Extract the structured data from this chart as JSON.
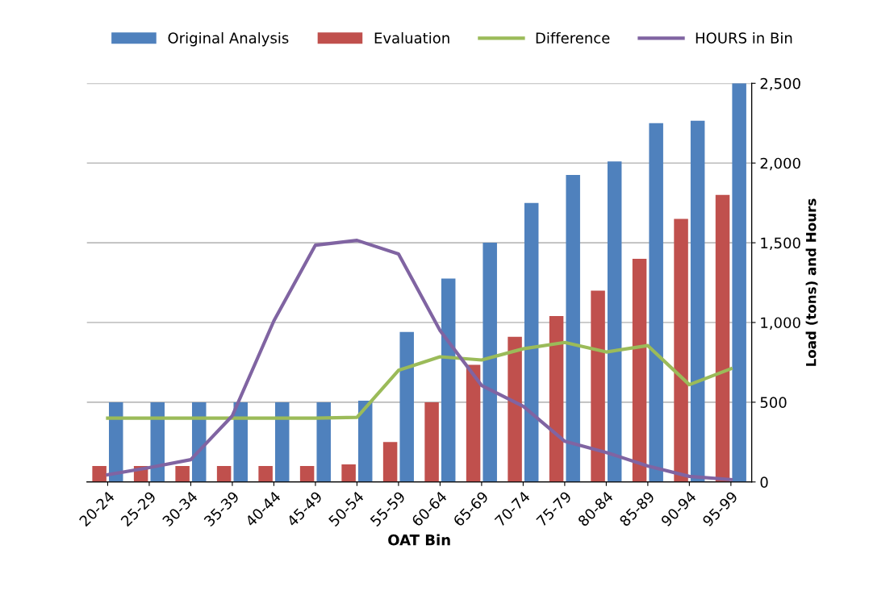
{
  "chart_data": {
    "type": "bar",
    "xlabel": "OAT Bin",
    "y2label": "Load (tons) and Hours",
    "categories": [
      "20-24",
      "25-29",
      "30-34",
      "35-39",
      "40-44",
      "45-49",
      "50-54",
      "55-59",
      "60-64",
      "65-69",
      "70-74",
      "75-79",
      "80-84",
      "85-89",
      "90-94",
      "95-99"
    ],
    "series": [
      {
        "name": "Original Analysis",
        "color": "#4f81bd",
        "axis": "y2",
        "values": [
          500,
          500,
          500,
          500,
          500,
          500,
          510,
          940,
          1275,
          1500,
          1750,
          1925,
          2010,
          2250,
          2265,
          2500
        ]
      },
      {
        "name": "Evaluation",
        "color": "#c0504d",
        "axis": "y2",
        "values": [
          100,
          100,
          100,
          100,
          100,
          100,
          110,
          250,
          500,
          735,
          910,
          1040,
          1200,
          1400,
          1650,
          1800
        ]
      },
      {
        "name": "Difference",
        "color": "#9bbb59",
        "type": "line",
        "axis": "y2",
        "values": [
          400,
          400,
          400,
          400,
          400,
          400,
          405,
          700,
          785,
          765,
          835,
          875,
          815,
          855,
          610,
          710
        ]
      },
      {
        "name": "HOURS in Bin",
        "color": "#8064a2",
        "type": "line",
        "axis": "y2",
        "values": [
          45,
          90,
          140,
          415,
          1010,
          1485,
          1515,
          1430,
          950,
          605,
          475,
          255,
          185,
          100,
          35,
          15
        ]
      }
    ],
    "y2lim": [
      0,
      2500
    ],
    "y2ticks": [
      {
        "value": 0,
        "label": "0"
      },
      {
        "value": 500,
        "label": "500"
      },
      {
        "value": 1000,
        "label": "1,000"
      },
      {
        "value": 1500,
        "label": "1,500"
      },
      {
        "value": 2000,
        "label": "2,000"
      },
      {
        "value": 2500,
        "label": "2,500"
      }
    ],
    "grid": "y",
    "legend": "top",
    "marker": "none",
    "line_style": "solid"
  }
}
